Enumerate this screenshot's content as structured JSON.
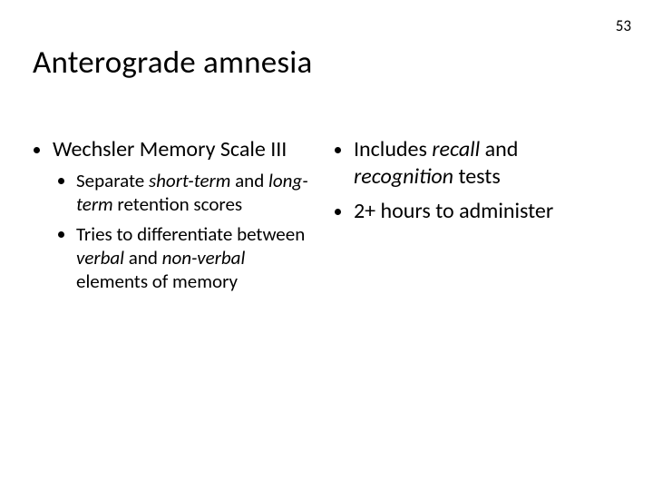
{
  "page_number": "53",
  "title": "Anterograde amnesia",
  "left": {
    "top1_a": "Wechsler Memory Scale III",
    "sub1_a": "Separate ",
    "sub1_b": "short-term",
    "sub1_c": " and ",
    "sub1_d": "long-term",
    "sub1_e": " retention scores",
    "sub2_a": "Tries to differentiate between ",
    "sub2_b": "verbal",
    "sub2_c": " and ",
    "sub2_d": "non-verbal",
    "sub2_e": " elements of memory"
  },
  "right": {
    "top1_a": "Includes ",
    "top1_b": "recall",
    "top1_c": " and ",
    "top1_d": "recognition",
    "top1_e": " tests",
    "top2_a": "2+ hours to administer"
  },
  "style": {
    "background_color": "#ffffff",
    "text_color": "#000000",
    "title_fontsize": 35,
    "body_fontsize": 24,
    "sub_fontsize": 21,
    "page_number_fontsize": 17,
    "italic_segments": [
      "short-term",
      "long-term",
      "verbal",
      "non-verbal",
      "recall",
      "recognition"
    ]
  }
}
